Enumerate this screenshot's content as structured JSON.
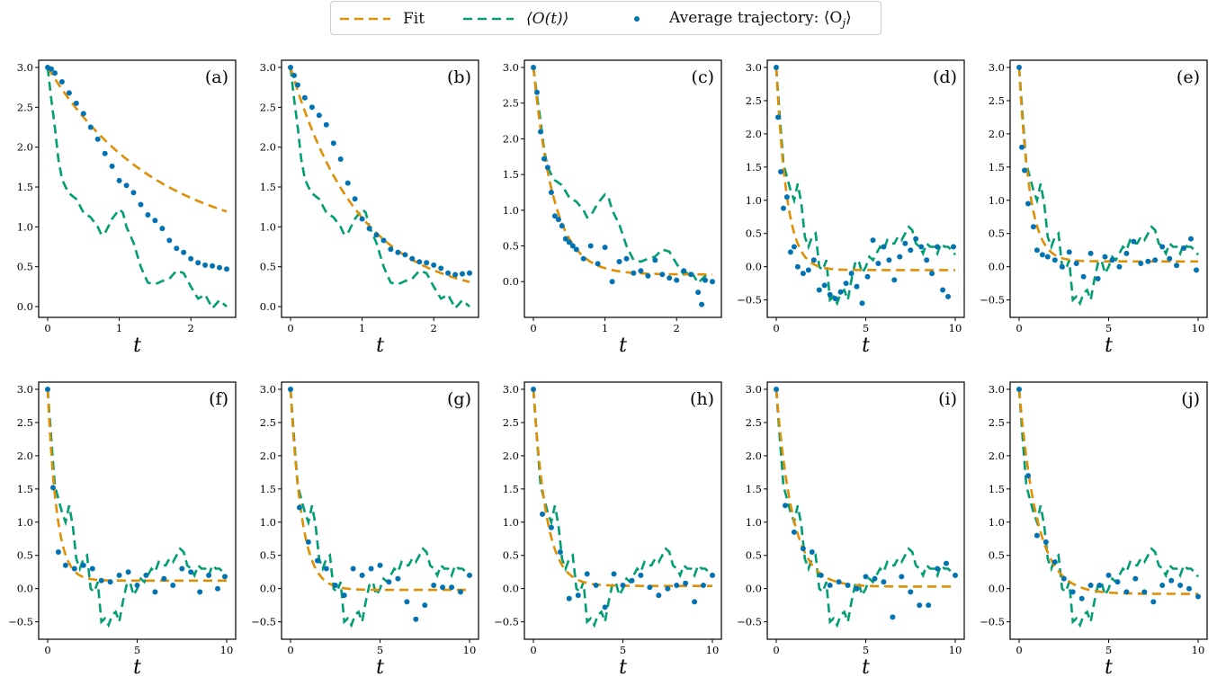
{
  "legend": {
    "fit": "Fit",
    "o_t": "⟨O(t)⟩",
    "avg": "Average trajectory: ⟨O",
    "avg_sub": "j",
    "avg_close": "⟩"
  },
  "colors": {
    "fit": "#de8f05",
    "o_t": "#029e73",
    "avg": "#0173b2"
  },
  "chart_data": [
    {
      "type": "line",
      "panel_label": "(a)",
      "xlabel": "t",
      "xlim": [
        0,
        2.5
      ],
      "ylim": [
        0,
        3
      ],
      "xticks": [
        0,
        1,
        2
      ],
      "yticks": [
        0.0,
        0.5,
        1.0,
        1.5,
        2.0,
        2.5,
        3.0
      ],
      "fit": {
        "a": 0.75,
        "b": 2.25,
        "k": 0.65
      },
      "avg_x": [
        0,
        0.05,
        0.1,
        0.2,
        0.3,
        0.4,
        0.5,
        0.6,
        0.7,
        0.8,
        0.9,
        1.0,
        1.1,
        1.2,
        1.3,
        1.4,
        1.5,
        1.6,
        1.7,
        1.8,
        1.9,
        2.0,
        2.1,
        2.2,
        2.3,
        2.4,
        2.5
      ],
      "avg_y": [
        3.0,
        2.98,
        2.93,
        2.82,
        2.68,
        2.55,
        2.42,
        2.25,
        2.1,
        1.92,
        1.76,
        1.58,
        1.52,
        1.43,
        1.28,
        1.15,
        1.08,
        0.98,
        0.83,
        0.73,
        0.68,
        0.6,
        0.55,
        0.52,
        0.51,
        0.49,
        0.47
      ]
    },
    {
      "type": "line",
      "panel_label": "(b)",
      "xlabel": "t",
      "xlim": [
        0,
        2.5
      ],
      "ylim": [
        0,
        3
      ],
      "xticks": [
        0,
        1,
        2
      ],
      "yticks": [
        0.0,
        0.5,
        1.0,
        1.5,
        2.0,
        2.5,
        3.0
      ],
      "fit": {
        "a": 0.1,
        "b": 2.9,
        "k": 1.05
      },
      "avg_x": [
        0,
        0.05,
        0.1,
        0.2,
        0.3,
        0.4,
        0.5,
        0.6,
        0.7,
        0.8,
        0.9,
        1.0,
        1.1,
        1.2,
        1.3,
        1.4,
        1.5,
        1.6,
        1.7,
        1.8,
        1.9,
        2.0,
        2.1,
        2.2,
        2.3,
        2.4,
        2.5
      ],
      "avg_y": [
        3.0,
        2.9,
        2.78,
        2.62,
        2.5,
        2.4,
        2.28,
        2.05,
        1.85,
        1.55,
        1.35,
        1.1,
        0.98,
        0.9,
        0.83,
        0.72,
        0.68,
        0.65,
        0.6,
        0.56,
        0.55,
        0.52,
        0.48,
        0.42,
        0.4,
        0.41,
        0.42
      ]
    },
    {
      "type": "line",
      "panel_label": "(c)",
      "xlabel": "t",
      "xlim": [
        0,
        2.5
      ],
      "ylim": [
        -0.35,
        3
      ],
      "xticks": [
        0,
        1,
        2
      ],
      "yticks": [
        0.0,
        0.5,
        1.0,
        1.5,
        2.0,
        2.5,
        3.0
      ],
      "fit": {
        "a": 0.1,
        "b": 2.9,
        "k": 3.5
      },
      "avg_x": [
        0,
        0.05,
        0.1,
        0.15,
        0.2,
        0.25,
        0.3,
        0.35,
        0.4,
        0.45,
        0.5,
        0.55,
        0.6,
        0.7,
        0.8,
        0.9,
        1.0,
        1.1,
        1.2,
        1.3,
        1.4,
        1.5,
        1.6,
        1.7,
        1.8,
        1.9,
        2.0,
        2.1,
        2.2,
        2.3,
        2.35,
        2.4,
        2.5
      ],
      "avg_y": [
        3.0,
        2.65,
        2.1,
        1.72,
        1.6,
        1.25,
        0.92,
        0.87,
        0.78,
        0.6,
        0.55,
        0.5,
        0.45,
        0.32,
        0.5,
        0.25,
        0.48,
        0.0,
        0.28,
        0.32,
        0.12,
        0.15,
        0.08,
        0.3,
        0.1,
        0.05,
        0.02,
        0.15,
        0.1,
        -0.15,
        -0.32,
        0.02,
        0.0
      ]
    },
    {
      "type": "line",
      "panel_label": "(d)",
      "xlabel": "t",
      "xlim": [
        0,
        10
      ],
      "ylim": [
        -0.6,
        3
      ],
      "xticks": [
        0,
        5,
        10
      ],
      "yticks": [
        -0.5,
        0.0,
        0.5,
        1.0,
        1.5,
        2.0,
        2.5,
        3.0
      ],
      "fit": {
        "a": -0.05,
        "b": 3.05,
        "k": 1.7
      },
      "avg_x": [
        0,
        0.1,
        0.25,
        0.4,
        0.6,
        0.8,
        1.0,
        1.2,
        1.5,
        1.8,
        2.1,
        2.4,
        2.7,
        3.0,
        3.3,
        3.6,
        3.9,
        4.2,
        4.5,
        4.8,
        5.1,
        5.4,
        5.7,
        6.0,
        6.3,
        6.6,
        6.9,
        7.2,
        7.5,
        7.8,
        8.1,
        8.4,
        8.7,
        9.0,
        9.3,
        9.6,
        9.9
      ],
      "avg_y": [
        3.0,
        2.25,
        1.43,
        0.88,
        1.05,
        0.22,
        0.3,
        0.0,
        -0.1,
        -0.05,
        0.1,
        -0.35,
        -0.28,
        -0.42,
        -0.48,
        -0.38,
        -0.25,
        -0.1,
        -0.3,
        -0.55,
        -0.15,
        0.4,
        0.05,
        0.3,
        0.1,
        -0.2,
        0.15,
        0.35,
        0.25,
        0.42,
        0.3,
        0.1,
        -0.1,
        0.3,
        -0.35,
        -0.45,
        0.3
      ]
    },
    {
      "type": "line",
      "panel_label": "(e)",
      "xlabel": "t",
      "xlim": [
        0,
        10
      ],
      "ylim": [
        -0.6,
        3
      ],
      "xticks": [
        0,
        5,
        10
      ],
      "yticks": [
        -0.5,
        0.0,
        0.5,
        1.0,
        1.5,
        2.0,
        2.5,
        3.0
      ],
      "fit": {
        "a": 0.08,
        "b": 2.92,
        "k": 1.7
      },
      "avg_x": [
        0,
        0.15,
        0.3,
        0.5,
        0.8,
        1.0,
        1.3,
        1.6,
        2.0,
        2.4,
        2.8,
        3.2,
        3.6,
        4.0,
        4.4,
        4.8,
        5.2,
        5.6,
        6.0,
        6.4,
        6.8,
        7.2,
        7.6,
        8.0,
        8.4,
        8.8,
        9.2,
        9.6,
        9.9
      ],
      "avg_y": [
        3.0,
        1.8,
        1.45,
        0.95,
        0.6,
        0.25,
        0.18,
        0.15,
        0.1,
        0.0,
        0.22,
        0.05,
        -0.15,
        0.2,
        -0.18,
        0.15,
        0.1,
        0.0,
        0.2,
        0.38,
        0.05,
        0.08,
        0.1,
        0.3,
        0.12,
        0.02,
        0.28,
        0.42,
        -0.05
      ]
    },
    {
      "type": "line",
      "panel_label": "(f)",
      "xlabel": "t",
      "xlim": [
        0,
        10
      ],
      "ylim": [
        -0.6,
        3
      ],
      "xticks": [
        0,
        5,
        10
      ],
      "yticks": [
        -0.5,
        0.0,
        0.5,
        1.0,
        1.5,
        2.0,
        2.5,
        3.0
      ],
      "fit": {
        "a": 0.12,
        "b": 2.88,
        "k": 2.0
      },
      "avg_x": [
        0,
        0.3,
        0.6,
        1.0,
        1.5,
        2.0,
        2.5,
        3.0,
        3.5,
        4.0,
        4.5,
        5.0,
        5.5,
        6.0,
        6.5,
        7.0,
        7.5,
        8.0,
        8.5,
        9.0,
        9.5,
        9.9
      ],
      "avg_y": [
        3.0,
        1.52,
        0.55,
        0.35,
        0.3,
        0.35,
        0.3,
        0.12,
        0.1,
        0.2,
        0.25,
        0.05,
        0.2,
        -0.05,
        0.15,
        0.05,
        0.3,
        0.25,
        -0.05,
        0.2,
        0.0,
        0.18
      ]
    },
    {
      "type": "line",
      "panel_label": "(g)",
      "xlabel": "t",
      "xlim": [
        0,
        10
      ],
      "ylim": [
        -0.6,
        3
      ],
      "xticks": [
        0,
        5,
        10
      ],
      "yticks": [
        -0.5,
        0.0,
        0.5,
        1.0,
        1.5,
        2.0,
        2.5,
        3.0
      ],
      "fit": {
        "a": -0.02,
        "b": 3.02,
        "k": 1.6
      },
      "avg_x": [
        0,
        0.5,
        1.0,
        1.5,
        2.0,
        2.5,
        3.0,
        3.5,
        4.0,
        4.5,
        5.0,
        5.5,
        6.0,
        6.5,
        7.0,
        7.5,
        8.0,
        8.5,
        9.0,
        9.5,
        10.0
      ],
      "avg_y": [
        3.0,
        1.22,
        0.7,
        0.42,
        0.3,
        0.05,
        -0.1,
        0.3,
        0.2,
        0.3,
        0.35,
        0.1,
        0.15,
        -0.2,
        -0.46,
        -0.25,
        0.05,
        0.02,
        0.02,
        -0.05,
        0.2
      ]
    },
    {
      "type": "line",
      "panel_label": "(h)",
      "xlabel": "t",
      "xlim": [
        0,
        10
      ],
      "ylim": [
        -0.6,
        3
      ],
      "xticks": [
        0,
        5,
        10
      ],
      "yticks": [
        -0.5,
        0.0,
        0.5,
        1.0,
        1.5,
        2.0,
        2.5,
        3.0
      ],
      "fit": {
        "a": 0.04,
        "b": 2.96,
        "k": 1.4
      },
      "avg_x": [
        0,
        0.5,
        1.0,
        1.5,
        2.0,
        2.5,
        3.0,
        3.5,
        4.0,
        4.5,
        5.0,
        5.5,
        6.0,
        6.5,
        7.0,
        7.5,
        8.0,
        8.5,
        9.0,
        9.5,
        10.0
      ],
      "avg_y": [
        3.0,
        1.12,
        0.92,
        0.55,
        -0.15,
        -0.1,
        0.22,
        0.05,
        -0.28,
        0.22,
        0.05,
        0.12,
        0.2,
        0.02,
        -0.1,
        0.0,
        0.05,
        0.08,
        -0.2,
        0.05,
        0.2
      ]
    },
    {
      "type": "line",
      "panel_label": "(i)",
      "xlabel": "t",
      "xlim": [
        0,
        10
      ],
      "ylim": [
        -0.6,
        3
      ],
      "xticks": [
        0,
        5,
        10
      ],
      "yticks": [
        -0.5,
        0.0,
        0.5,
        1.0,
        1.5,
        2.0,
        2.5,
        3.0
      ],
      "fit": {
        "a": 0.03,
        "b": 2.97,
        "k": 1.1
      },
      "avg_x": [
        0,
        0.5,
        1.0,
        1.5,
        2.0,
        2.5,
        3.0,
        3.5,
        4.0,
        4.5,
        5.0,
        5.5,
        6.0,
        6.5,
        7.0,
        7.5,
        8.0,
        8.5,
        9.0,
        9.5,
        10.0
      ],
      "avg_y": [
        3.0,
        1.25,
        0.85,
        0.6,
        0.55,
        0.2,
        0.05,
        0.1,
        0.05,
        0.0,
        0.18,
        0.15,
        0.1,
        -0.43,
        0.18,
        -0.05,
        -0.25,
        -0.25,
        0.3,
        0.38,
        0.2
      ]
    },
    {
      "type": "line",
      "panel_label": "(j)",
      "xlabel": "t",
      "xlim": [
        0,
        10
      ],
      "ylim": [
        -0.6,
        3
      ],
      "xticks": [
        0,
        5,
        10
      ],
      "yticks": [
        -0.5,
        0.0,
        0.5,
        1.0,
        1.5,
        2.0,
        2.5,
        3.0
      ],
      "fit": {
        "a": -0.08,
        "b": 3.08,
        "k": 1.0
      },
      "avg_x": [
        0,
        0.5,
        1.0,
        1.5,
        2.0,
        2.5,
        3.0,
        3.5,
        4.0,
        4.5,
        5.0,
        5.5,
        6.0,
        6.5,
        7.0,
        7.5,
        8.0,
        8.5,
        9.0,
        9.5,
        10.0
      ],
      "avg_y": [
        3.0,
        1.7,
        0.8,
        0.7,
        0.4,
        0.15,
        -0.05,
        -0.15,
        0.05,
        0.05,
        0.2,
        0.1,
        -0.05,
        0.15,
        -0.05,
        -0.2,
        0.05,
        0.12,
        0.05,
        0.0,
        -0.12
      ]
    }
  ],
  "o_t_series": {
    "short": {
      "x": [
        0,
        0.05,
        0.1,
        0.15,
        0.2,
        0.25,
        0.3,
        0.4,
        0.5,
        0.6,
        0.7,
        0.75,
        0.8,
        0.9,
        1.0,
        1.05,
        1.1,
        1.2,
        1.3,
        1.4,
        1.5,
        1.55,
        1.6,
        1.7,
        1.8,
        1.9,
        2.0,
        2.1,
        2.2,
        2.3,
        2.4,
        2.5
      ],
      "y": [
        3.0,
        2.6,
        2.25,
        1.85,
        1.6,
        1.5,
        1.42,
        1.35,
        1.18,
        1.12,
        1.0,
        0.9,
        0.92,
        1.1,
        1.22,
        1.18,
        1.0,
        0.8,
        0.5,
        0.3,
        0.28,
        0.3,
        0.32,
        0.35,
        0.45,
        0.42,
        0.25,
        0.1,
        0.15,
        -0.02,
        0.08,
        0.0
      ]
    },
    "long": {
      "x": [
        0,
        0.2,
        0.4,
        0.6,
        0.8,
        1.0,
        1.2,
        1.4,
        1.6,
        1.8,
        2.0,
        2.2,
        2.4,
        2.6,
        2.8,
        3.0,
        3.2,
        3.4,
        3.6,
        3.8,
        4.0,
        4.2,
        4.4,
        4.6,
        4.8,
        5.0,
        5.2,
        5.4,
        5.6,
        5.8,
        6.0,
        6.2,
        6.4,
        6.6,
        6.8,
        7.0,
        7.2,
        7.4,
        7.6,
        7.8,
        8.0,
        8.2,
        8.4,
        8.6,
        8.8,
        9.0,
        9.2,
        9.4,
        9.6,
        9.8,
        10.0
      ],
      "y": [
        3.0,
        2.25,
        1.55,
        1.35,
        1.15,
        1.0,
        1.25,
        0.95,
        0.45,
        0.3,
        0.45,
        0.5,
        0.0,
        -0.05,
        0.1,
        -0.5,
        -0.45,
        -0.55,
        -0.4,
        -0.35,
        -0.5,
        -0.2,
        0.05,
        0.1,
        -0.1,
        0.0,
        0.15,
        0.1,
        0.2,
        0.3,
        0.25,
        0.4,
        0.35,
        0.35,
        0.45,
        0.4,
        0.5,
        0.6,
        0.55,
        0.35,
        0.3,
        0.2,
        0.35,
        0.3,
        0.3,
        0.2,
        0.35,
        0.3,
        0.3,
        0.25,
        0.18
      ]
    }
  }
}
